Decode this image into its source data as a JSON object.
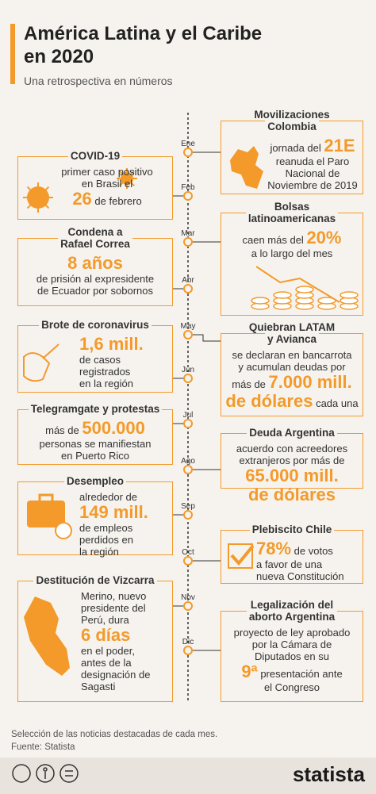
{
  "header": {
    "title_lines": [
      "América Latina y el Caribe",
      "en 2020"
    ],
    "subtitle": "Una retrospectiva en números"
  },
  "months": [
    "Ene",
    "Feb",
    "Mar",
    "Abr",
    "May",
    "Jun",
    "Jul",
    "Ago",
    "Sep",
    "Oct",
    "Nov",
    "Dic"
  ],
  "events": [
    {
      "title": [
        "Movilizaciones",
        "Colombia"
      ],
      "lines": [
        [
          "jornada del ",
          "21E"
        ],
        [
          "reanuda el Paro"
        ],
        [
          "Nacional de"
        ],
        [
          "Noviembre de 2019"
        ]
      ]
    },
    {
      "title": [
        "COVID-19"
      ],
      "lines": [
        [
          "primer caso positivo"
        ],
        [
          "en Brasil el"
        ],
        [
          "26",
          " de febrero"
        ]
      ]
    },
    {
      "title": [
        "Bolsas",
        "latinoamericanas"
      ],
      "lines": [
        [
          "caen más del ",
          "20%"
        ],
        [
          "a lo largo del mes"
        ]
      ]
    },
    {
      "title": [
        "Condena a",
        "Rafael Correa"
      ],
      "lines": [
        [
          "8 años"
        ],
        [
          "de prisión al expresidente"
        ],
        [
          "de Ecuador por sobornos"
        ]
      ]
    },
    {
      "title": [
        "Quiebran LATAM",
        "y Avianca"
      ],
      "lines": [
        [
          "se declaran en bancarrota"
        ],
        [
          "y acumulan deudas por"
        ],
        [
          "más de ",
          "7.000 mill."
        ],
        [
          "de dólares",
          " cada una"
        ]
      ]
    },
    {
      "title": [
        "Brote de coronavirus"
      ],
      "lines": [
        [
          "1,6 mill."
        ],
        [
          "de casos"
        ],
        [
          "registrados"
        ],
        [
          "en la región"
        ]
      ]
    },
    {
      "title": [
        "Telegramgate y protestas"
      ],
      "lines": [
        [
          "más de ",
          "500.000"
        ],
        [
          "personas se manifiestan"
        ],
        [
          "en Puerto Rico"
        ]
      ]
    },
    {
      "title": [
        "Deuda Argentina"
      ],
      "lines": [
        [
          "acuerdo con acreedores"
        ],
        [
          "extranjeros por más de"
        ],
        [
          "65.000 mill."
        ],
        [
          "de dólares"
        ]
      ]
    },
    {
      "title": [
        "Desempleo"
      ],
      "lines": [
        [
          "alrededor de"
        ],
        [
          "149 mill."
        ],
        [
          "de empleos"
        ],
        [
          "perdidos en"
        ],
        [
          "la región"
        ]
      ]
    },
    {
      "title": [
        "Plebiscito Chile"
      ],
      "lines": [
        [
          "78%",
          " de votos"
        ],
        [
          "a favor de una"
        ],
        [
          "nueva Constitución"
        ]
      ]
    },
    {
      "title": [
        "Destitución de Vizcarra"
      ],
      "lines": [
        [
          "Merino, nuevo"
        ],
        [
          "presidente del"
        ],
        [
          "Perú, dura"
        ],
        [
          "6 días"
        ],
        [
          "en el poder,"
        ],
        [
          "antes de la"
        ],
        [
          "designación de"
        ],
        [
          "Sagasti"
        ]
      ]
    },
    {
      "title": [
        "Legalización del",
        "aborto Argentina"
      ],
      "lines": [
        [
          "proyecto de ley aprobado"
        ],
        [
          "por la Cámara de"
        ],
        [
          "Diputados en su"
        ],
        [
          "9ª",
          " presentación ante"
        ],
        [
          "el Congreso"
        ]
      ]
    }
  ],
  "footer": {
    "note": "Selección de las noticias destacadas de cada mes.",
    "source": "Fuente: Statista",
    "brand": "statista"
  }
}
